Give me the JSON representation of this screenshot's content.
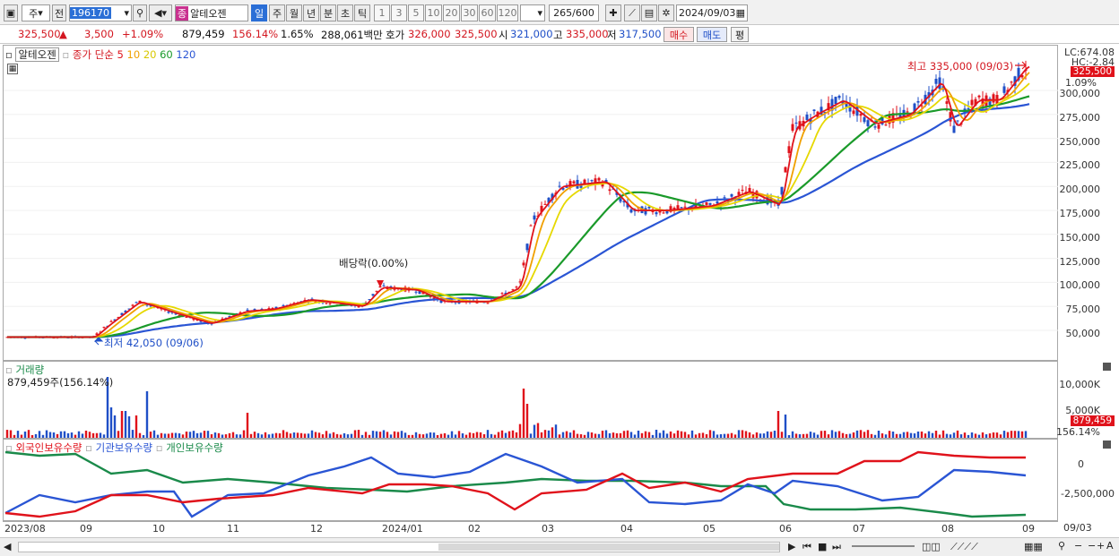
{
  "toolbar": {
    "period_type": "주",
    "prev": "전",
    "code": "196170",
    "badge": "종",
    "name": "알테오젠",
    "tabs": [
      "일",
      "주",
      "월",
      "년",
      "분",
      "초",
      "틱"
    ],
    "active_tab": "일",
    "intervals": [
      "1",
      "3",
      "5",
      "10",
      "20",
      "30",
      "60",
      "120"
    ],
    "count": "265",
    "count_max": "/600",
    "date": "2024/09/03"
  },
  "quote": {
    "price": "325,500",
    "change": "3,500",
    "change_pct": "+1.09%",
    "volume": "879,459",
    "volume_ratio": "156.14%",
    "turnover_pct": "1.65%",
    "amount": "288,061백만",
    "bid_label": "호가",
    "ask_price": "326,000",
    "bid_price": "325,500",
    "open_label": "시",
    "open": "321,000",
    "high_label": "고",
    "high": "335,000",
    "low_label": "저",
    "low": "317,500",
    "buy_label": "매수",
    "sell_label": "매도",
    "avg_label": "평"
  },
  "price_panel": {
    "stock_label": "알테오젠",
    "ma_legend": "종가 단순",
    "ma_periods": [
      "5",
      "10",
      "20",
      "60",
      "120"
    ],
    "ma_colors": [
      "#e0121b",
      "#f0a000",
      "#e6d800",
      "#1a9a2a",
      "#2a55d4"
    ],
    "lc": "LC:674.08",
    "hc": "HC:-2.84",
    "price_tag": "325,500",
    "pct_tag": "1.09%",
    "high_annotation": "최고 335,000 (09/03)",
    "low_annotation": "최저 42,050 (09/06)",
    "dividend_annotation": "배당락(0.00%)",
    "y_ticks": [
      "300,000",
      "275,000",
      "250,000",
      "225,000",
      "200,000",
      "175,000",
      "150,000",
      "125,000",
      "100,000",
      "75,000",
      "50,000"
    ]
  },
  "volume_panel": {
    "title": "거래량",
    "value": "879,459주(156.14%)",
    "y_ticks": [
      "10,000K",
      "5,000K"
    ],
    "tag_value": "879,459",
    "tag_pct": "156.14%"
  },
  "holdings_panel": {
    "series": [
      "외국인보유수량",
      "기관보유수량",
      "개인보유수량"
    ],
    "colors": [
      "#e0121b",
      "#2a55d4",
      "#1a8a4a"
    ],
    "y_ticks": [
      "0",
      "-2,500,000"
    ]
  },
  "x_axis": [
    "2023/08",
    "09",
    "10",
    "11",
    "12",
    "2024/01",
    "02",
    "03",
    "04",
    "05",
    "06",
    "07",
    "08",
    "09",
    "09/03"
  ]
}
